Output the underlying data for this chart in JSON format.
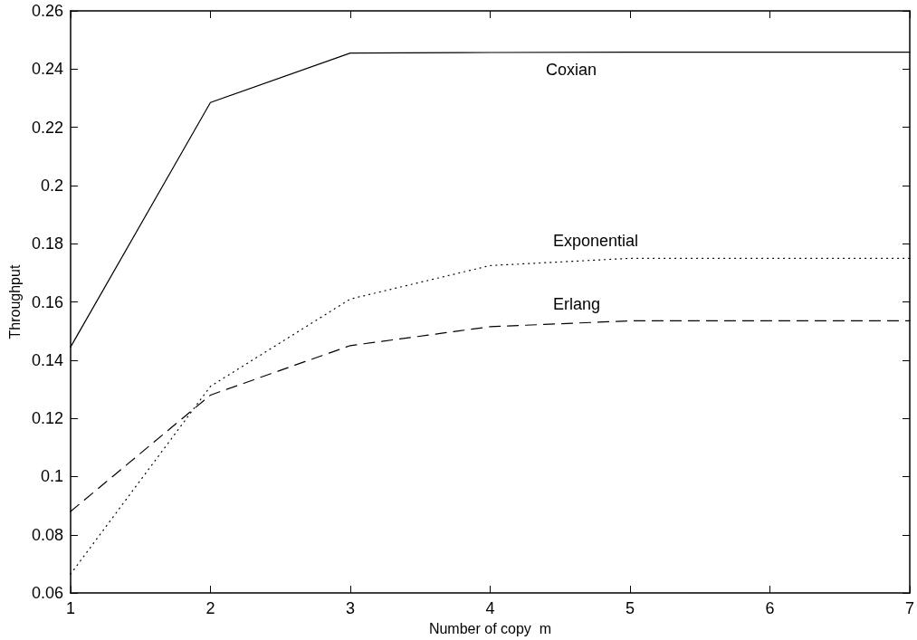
{
  "chart_data": {
    "type": "line",
    "xlabel": "Number of copy  m",
    "ylabel": "Throughput",
    "x": [
      1,
      2,
      3,
      4,
      5,
      6,
      7
    ],
    "series": [
      {
        "color": "#000000",
        "line_style": "solid",
        "values": [
          0.1445,
          0.2285,
          0.2455,
          0.2457,
          0.2458,
          0.2458,
          0.2458
        ]
      },
      {
        "color": "#000000",
        "line_style": "dotted",
        "values": [
          0.0665,
          0.131,
          0.161,
          0.1725,
          0.175,
          0.175,
          0.175
        ]
      },
      {
        "color": "#000000",
        "line_style": "dashed",
        "values": [
          0.088,
          0.128,
          0.145,
          0.1515,
          0.1535,
          0.1535,
          0.1535
        ]
      }
    ],
    "annotations": [
      "Coxian",
      "Exponential",
      "Erlang"
    ],
    "xlim": [
      1,
      7
    ],
    "xticks": [
      1,
      2,
      3,
      4,
      5,
      6,
      7
    ],
    "ylim": [
      0.06,
      0.26
    ],
    "yticks": [
      0.06,
      0.08,
      0.1,
      0.12,
      0.14,
      0.16,
      0.18,
      0.2,
      0.22,
      0.24,
      0.26
    ],
    "grid": false,
    "marker": "none"
  }
}
